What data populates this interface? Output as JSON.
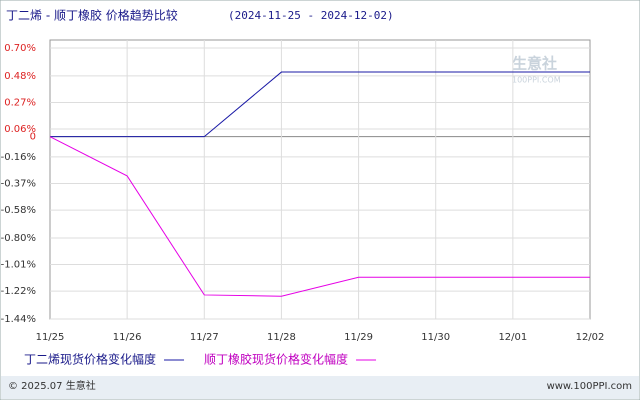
{
  "chart_data": {
    "type": "line",
    "title": "丁二烯 - 顺丁橡胶 价格趋势比较",
    "subtitle": "(2024-11-25 - 2024-12-02)",
    "categories": [
      "11/25",
      "11/26",
      "11/27",
      "11/28",
      "11/29",
      "11/30",
      "12/01",
      "12/02"
    ],
    "series": [
      {
        "name": "丁二烯现货价格变化幅度",
        "color": "#1a1aa6",
        "values": [
          0,
          0,
          0,
          0.51,
          0.51,
          0.51,
          0.51,
          0.51
        ]
      },
      {
        "name": "顺丁橡胶现货价格变化幅度",
        "color": "#e600e6",
        "values": [
          0,
          -0.31,
          -1.25,
          -1.26,
          -1.11,
          -1.11,
          -1.11,
          -1.11
        ]
      }
    ],
    "ylim": [
      -1.44,
      0.7
    ],
    "yticks": [
      {
        "value": 0.7,
        "label": "0.70%"
      },
      {
        "value": 0.48,
        "label": "0.48%"
      },
      {
        "value": 0.27,
        "label": "0.27%"
      },
      {
        "value": 0.06,
        "label": "0.06%"
      },
      0,
      {
        "value": -0.16,
        "label": "-0.16%"
      },
      {
        "value": -0.37,
        "label": "-0.37%"
      },
      {
        "value": -0.58,
        "label": "-0.58%"
      },
      {
        "value": -0.8,
        "label": "-0.80%"
      },
      {
        "value": -1.01,
        "label": "-1.01%"
      },
      {
        "value": -1.22,
        "label": "-1.22%"
      },
      {
        "value": -1.44,
        "label": "-1.44%"
      }
    ],
    "grid": true,
    "watermark": [
      "生意社",
      "100PPI.COM"
    ],
    "footer": {
      "left": "© 2025.07 生意社",
      "right": "www.100PPI.com"
    }
  }
}
